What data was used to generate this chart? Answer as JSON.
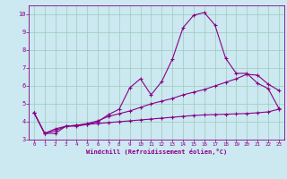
{
  "xlabel": "Windchill (Refroidissement éolien,°C)",
  "background_color": "#cce8f0",
  "grid_color": "#99ccbb",
  "line_color": "#880088",
  "xlim": [
    -0.5,
    23.5
  ],
  "ylim": [
    3.0,
    10.5
  ],
  "xticks": [
    0,
    1,
    2,
    3,
    4,
    5,
    6,
    7,
    8,
    9,
    10,
    11,
    12,
    13,
    14,
    15,
    16,
    17,
    18,
    19,
    20,
    21,
    22,
    23
  ],
  "yticks": [
    3,
    4,
    5,
    6,
    7,
    8,
    9,
    10
  ],
  "line1_x": [
    0,
    1,
    2,
    3,
    4,
    5,
    6,
    7,
    8,
    9,
    10,
    11,
    12,
    13,
    14,
    15,
    16,
    17,
    18,
    19,
    20,
    21,
    22,
    23
  ],
  "line1_y": [
    4.5,
    3.35,
    3.35,
    3.75,
    3.75,
    3.85,
    4.0,
    4.4,
    4.7,
    5.9,
    6.4,
    5.5,
    6.25,
    7.5,
    9.25,
    9.95,
    10.1,
    9.4,
    7.55,
    6.7,
    6.7,
    6.15,
    5.85,
    4.75
  ],
  "line2_x": [
    0,
    1,
    2,
    3,
    4,
    5,
    6,
    7,
    8,
    9,
    10,
    11,
    12,
    13,
    14,
    15,
    16,
    17,
    18,
    19,
    20,
    21,
    22,
    23
  ],
  "line2_y": [
    4.5,
    3.35,
    3.6,
    3.75,
    3.8,
    3.9,
    4.05,
    4.3,
    4.45,
    4.6,
    4.8,
    5.0,
    5.15,
    5.3,
    5.5,
    5.65,
    5.8,
    6.0,
    6.2,
    6.4,
    6.65,
    6.6,
    6.1,
    5.75
  ],
  "line3_x": [
    0,
    1,
    2,
    3,
    4,
    5,
    6,
    7,
    8,
    9,
    10,
    11,
    12,
    13,
    14,
    15,
    16,
    17,
    18,
    19,
    20,
    21,
    22,
    23
  ],
  "line3_y": [
    4.5,
    3.35,
    3.5,
    3.75,
    3.8,
    3.85,
    3.9,
    3.95,
    4.0,
    4.05,
    4.1,
    4.15,
    4.2,
    4.25,
    4.3,
    4.35,
    4.38,
    4.4,
    4.42,
    4.44,
    4.46,
    4.5,
    4.55,
    4.7
  ]
}
